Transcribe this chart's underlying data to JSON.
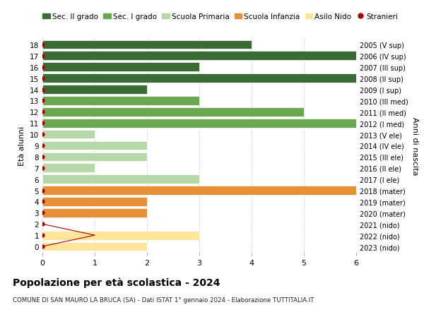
{
  "ages": [
    18,
    17,
    16,
    15,
    14,
    13,
    12,
    11,
    10,
    9,
    8,
    7,
    6,
    5,
    4,
    3,
    2,
    1,
    0
  ],
  "right_labels": [
    "2005 (V sup)",
    "2006 (IV sup)",
    "2007 (III sup)",
    "2008 (II sup)",
    "2009 (I sup)",
    "2010 (III med)",
    "2011 (II med)",
    "2012 (I med)",
    "2013 (V ele)",
    "2014 (IV ele)",
    "2015 (III ele)",
    "2016 (II ele)",
    "2017 (I ele)",
    "2018 (mater)",
    "2019 (mater)",
    "2020 (mater)",
    "2021 (nido)",
    "2022 (nido)",
    "2023 (nido)"
  ],
  "bar_values": [
    4,
    6,
    3,
    6,
    2,
    3,
    5,
    6,
    1,
    2,
    2,
    1,
    3,
    6,
    2,
    2,
    0,
    3,
    2
  ],
  "bar_colors": [
    "#3a6b35",
    "#3a6b35",
    "#3a6b35",
    "#3a6b35",
    "#3a6b35",
    "#6aa84f",
    "#6aa84f",
    "#6aa84f",
    "#b6d7a8",
    "#b6d7a8",
    "#b6d7a8",
    "#b6d7a8",
    "#b6d7a8",
    "#e69138",
    "#e69138",
    "#e69138",
    "#ffe599",
    "#ffe599",
    "#ffe599"
  ],
  "stranieri_ages": [
    18,
    17,
    16,
    15,
    14,
    13,
    12,
    11,
    10,
    9,
    8,
    7,
    5,
    4,
    3,
    2,
    1,
    0
  ],
  "stranieri_color": "#aa0000",
  "stranieri_line_ages": [
    2,
    1,
    0
  ],
  "stranieri_line_x": [
    0,
    1,
    0
  ],
  "legend_labels": [
    "Sec. II grado",
    "Sec. I grado",
    "Scuola Primaria",
    "Scuola Infanzia",
    "Asilo Nido",
    "Stranieri"
  ],
  "legend_colors": [
    "#3a6b35",
    "#6aa84f",
    "#b6d7a8",
    "#e69138",
    "#ffe599",
    "#aa0000"
  ],
  "ylabel_right": "Anni di nascita",
  "title": "Popolazione per eta scolastica - 2024",
  "title_display": "Popolazione per età scolastica - 2024",
  "subtitle": "COMUNE DI SAN MAURO LA BRUCA (SA) - Dati ISTAT 1° gennaio 2024 - Elaborazione TUTTITALIA.IT",
  "xlim": [
    0,
    6
  ],
  "bar_height": 0.8,
  "background_color": "#ffffff",
  "grid_color": "#cccccc"
}
